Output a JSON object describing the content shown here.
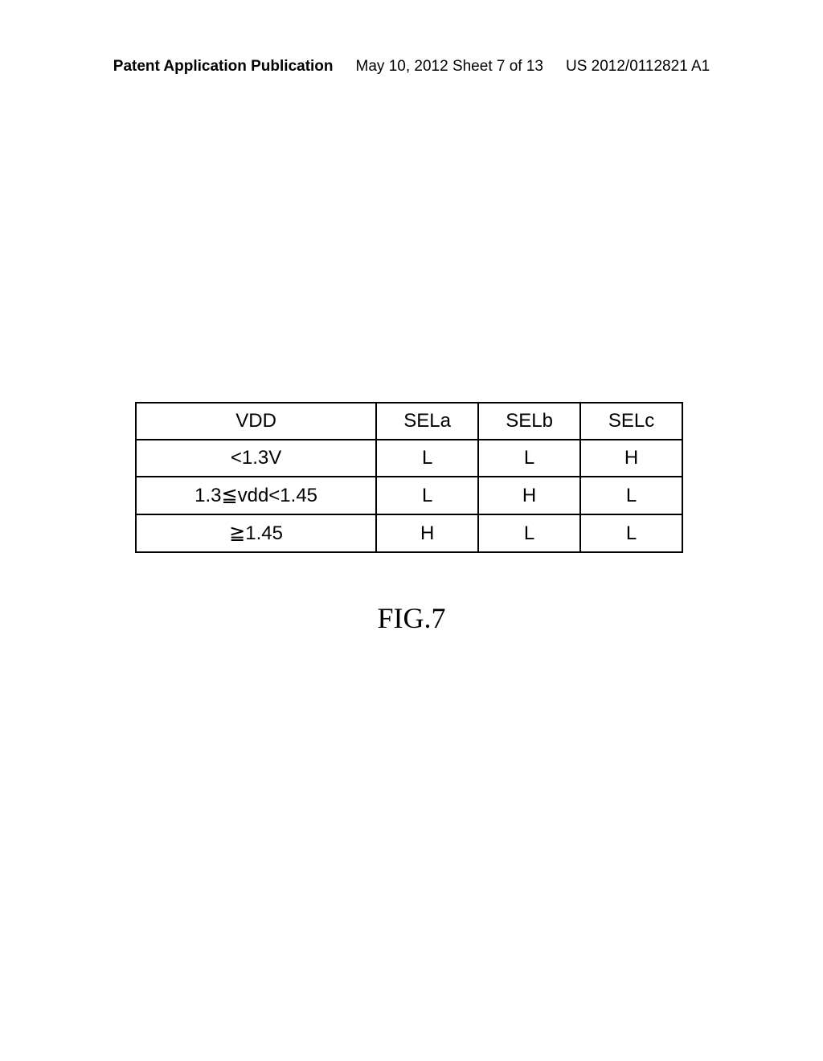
{
  "header": {
    "publication_type": "Patent Application Publication",
    "date_sheet": "May 10, 2012  Sheet 7 of 13",
    "publication_number": "US 2012/0112821 A1"
  },
  "table": {
    "type": "table",
    "columns": [
      "VDD",
      "SELa",
      "SELb",
      "SELc"
    ],
    "column_widths": [
      "44%",
      "18.67%",
      "18.67%",
      "18.67%"
    ],
    "rows": [
      [
        "<1.3V",
        "L",
        "L",
        "H"
      ],
      [
        "1.3≦vdd<1.45",
        "L",
        "H",
        "L"
      ],
      [
        "≧1.45",
        "H",
        "L",
        "L"
      ]
    ],
    "border_color": "#000000",
    "border_width": 2,
    "background_color": "#ffffff",
    "font_size": 24,
    "text_color": "#000000"
  },
  "figure_caption": "FIG.7"
}
